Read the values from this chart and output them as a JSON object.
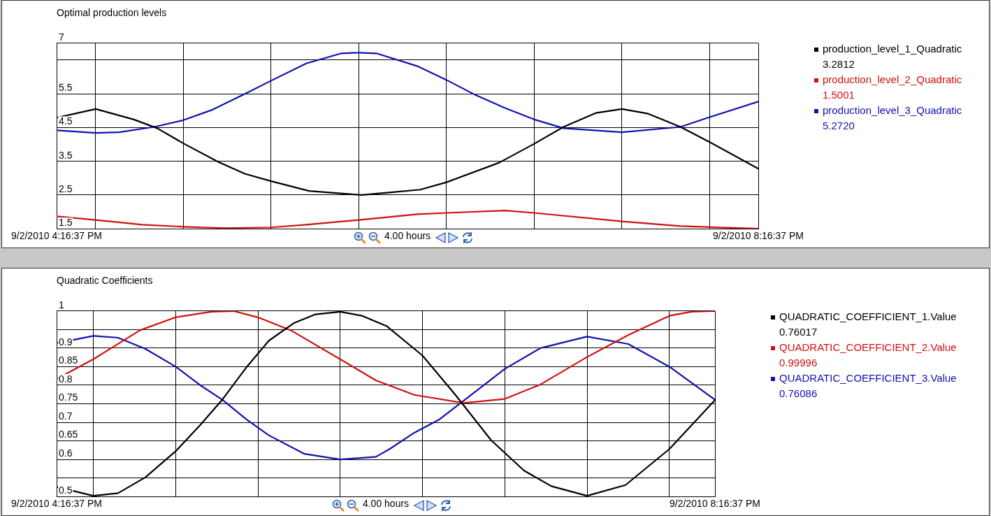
{
  "chart_data": [
    {
      "type": "line",
      "title": "Optimal production levels",
      "xlim": [
        "2010-09-02T16:16:37",
        "2010-09-02T20:16:37"
      ],
      "ylim": [
        1.5,
        7
      ],
      "xticks": [
        {
          "value": "2010-09-02T16:16:37",
          "label": "9/2/2010 4:16:37 PM"
        },
        {
          "value": "2010-09-02T16:30",
          "label": null
        },
        {
          "value": "2010-09-02T17:00",
          "label": null
        },
        {
          "value": "2010-09-02T17:30",
          "label": null
        },
        {
          "value": "2010-09-02T18:00",
          "label": null
        },
        {
          "value": "2010-09-02T18:16:37",
          "label": "4.00 hours"
        },
        {
          "value": "2010-09-02T18:30",
          "label": null
        },
        {
          "value": "2010-09-02T19:00",
          "label": null
        },
        {
          "value": "2010-09-02T19:30",
          "label": null
        },
        {
          "value": "2010-09-02T20:00",
          "label": null
        },
        {
          "value": "2010-09-02T20:16:37",
          "label": "9/2/2010 8:16:37 PM"
        }
      ],
      "yticks": [
        1.5,
        2.5,
        3.5,
        4.5,
        5.5,
        {
          "value": 6.5,
          "label": null
        },
        7
      ],
      "grid": true,
      "legend": "right",
      "series": [
        {
          "name": "production_level_1_Quadratic",
          "color": "#000000",
          "x": [
            "2010-09-02T16:16:37",
            "2010-09-02T16:30",
            "2010-09-02T16:43",
            "2010-09-02T16:51",
            "2010-09-02T17:00",
            "2010-09-02T17:12",
            "2010-09-02T17:21",
            "2010-09-02T17:30",
            "2010-09-02T17:43",
            "2010-09-02T18:01",
            "2010-09-02T18:11",
            "2010-09-02T18:21",
            "2010-09-02T18:30",
            "2010-09-02T18:48",
            "2010-09-02T19:00",
            "2010-09-02T19:10",
            "2010-09-02T19:21",
            "2010-09-02T19:30",
            "2010-09-02T19:39",
            "2010-09-02T19:50",
            "2010-09-02T20:00",
            "2010-09-02T20:16:37"
          ],
          "values": [
            4.79,
            5.05,
            4.74,
            4.48,
            4.03,
            3.48,
            3.13,
            2.91,
            2.62,
            2.5,
            2.58,
            2.66,
            2.88,
            3.46,
            4.02,
            4.52,
            4.93,
            5.05,
            4.91,
            4.52,
            4.07,
            3.28
          ]
        },
        {
          "name": "production_level_2_Quadratic",
          "color": "#d01010",
          "x": [
            "2010-09-02T16:16:37",
            "2010-09-02T16:30",
            "2010-09-02T16:46",
            "2010-09-02T17:00",
            "2010-09-02T17:14",
            "2010-09-02T17:30",
            "2010-09-02T17:42",
            "2010-09-02T18:00",
            "2010-09-02T18:20",
            "2010-09-02T18:30",
            "2010-09-02T18:50",
            "2010-09-02T19:00",
            "2010-09-02T19:30",
            "2010-09-02T19:50",
            "2010-09-02T20:16:37"
          ],
          "values": [
            1.87,
            1.76,
            1.62,
            1.56,
            1.52,
            1.54,
            1.62,
            1.76,
            1.93,
            1.97,
            2.04,
            1.97,
            1.72,
            1.58,
            1.5
          ]
        },
        {
          "name": "production_level_3_Quadratic",
          "color": "#1010b0",
          "x": [
            "2010-09-02T16:16:37",
            "2010-09-02T16:30",
            "2010-09-02T16:38",
            "2010-09-02T16:50",
            "2010-09-02T17:00",
            "2010-09-02T17:10",
            "2010-09-02T17:22",
            "2010-09-02T17:30",
            "2010-09-02T17:42",
            "2010-09-02T17:54",
            "2010-09-02T18:00",
            "2010-09-02T18:06",
            "2010-09-02T18:20",
            "2010-09-02T18:30",
            "2010-09-02T18:40",
            "2010-09-02T18:50",
            "2010-09-02T19:00",
            "2010-09-02T19:10",
            "2010-09-02T19:30",
            "2010-09-02T19:50",
            "2010-09-02T20:00",
            "2010-09-02T20:16:37"
          ],
          "values": [
            4.42,
            4.34,
            4.36,
            4.52,
            4.72,
            5.03,
            5.54,
            5.89,
            6.4,
            6.7,
            6.72,
            6.7,
            6.32,
            5.91,
            5.46,
            5.08,
            4.74,
            4.48,
            4.36,
            4.52,
            4.81,
            5.27
          ]
        }
      ],
      "annotations": [
        "3.2812",
        "1.5001",
        "5.2720"
      ]
    },
    {
      "type": "line",
      "title": "Quadratic Coefficients",
      "xlim": [
        "2010-09-02T16:16:37",
        "2010-09-02T20:16:37"
      ],
      "ylim": [
        0.5,
        1
      ],
      "xticks": [
        {
          "value": "2010-09-02T16:16:37",
          "label": "9/2/2010 4:16:37 PM"
        },
        {
          "value": "2010-09-02T16:30",
          "label": null
        },
        {
          "value": "2010-09-02T17:00",
          "label": null
        },
        {
          "value": "2010-09-02T17:30",
          "label": null
        },
        {
          "value": "2010-09-02T18:00",
          "label": null
        },
        {
          "value": "2010-09-02T18:16:37",
          "label": "4.00 hours"
        },
        {
          "value": "2010-09-02T18:30",
          "label": null
        },
        {
          "value": "2010-09-02T19:00",
          "label": null
        },
        {
          "value": "2010-09-02T19:30",
          "label": null
        },
        {
          "value": "2010-09-02T20:00",
          "label": null
        },
        {
          "value": "2010-09-02T20:16:37",
          "label": "9/2/2010 8:16:37 PM"
        }
      ],
      "yticks": [
        0.5,
        {
          "value": 0.55,
          "label": null
        },
        0.6,
        0.65,
        0.7,
        0.75,
        0.8,
        0.85,
        0.9,
        {
          "value": 0.95,
          "label": null
        },
        1
      ],
      "grid": true,
      "legend": "right",
      "series": [
        {
          "name": "QUADRATIC_COEFFICIENT_1.Value",
          "color": "#000000",
          "x": [
            "2010-09-02T16:16:37",
            "2010-09-02T16:30",
            "2010-09-02T16:39",
            "2010-09-02T16:49",
            "2010-09-02T17:00",
            "2010-09-02T17:09",
            "2010-09-02T17:17",
            "2010-09-02T17:26",
            "2010-09-02T17:34",
            "2010-09-02T17:43",
            "2010-09-02T17:51",
            "2010-09-02T18:00",
            "2010-09-02T18:08",
            "2010-09-02T18:17",
            "2010-09-02T18:30",
            "2010-09-02T18:42",
            "2010-09-02T18:55",
            "2010-09-02T19:07",
            "2010-09-02T19:17",
            "2010-09-02T19:30",
            "2010-09-02T19:44",
            "2010-09-02T20:00",
            "2010-09-02T20:16:37"
          ],
          "values": [
            0.526,
            0.502,
            0.509,
            0.552,
            0.622,
            0.693,
            0.761,
            0.85,
            0.92,
            0.967,
            0.991,
            0.998,
            0.987,
            0.959,
            0.88,
            0.774,
            0.652,
            0.57,
            0.528,
            0.502,
            0.531,
            0.628,
            0.76
          ]
        },
        {
          "name": "QUADRATIC_COEFFICIENT_2.Value",
          "color": "#d01010",
          "x": [
            "2010-09-02T16:16:37",
            "2010-09-02T16:30",
            "2010-09-02T16:47",
            "2010-09-02T17:00",
            "2010-09-02T17:13",
            "2010-09-02T17:21",
            "2010-09-02T17:30",
            "2010-09-02T17:42",
            "2010-09-02T18:00",
            "2010-09-02T18:13",
            "2010-09-02T18:27",
            "2010-09-02T18:45",
            "2010-09-02T19:00",
            "2010-09-02T19:13",
            "2010-09-02T19:30",
            "2010-09-02T19:45",
            "2010-09-02T20:00",
            "2010-09-02T20:08",
            "2010-09-02T20:16:37"
          ],
          "values": [
            0.817,
            0.87,
            0.948,
            0.983,
            0.998,
            1.0,
            0.983,
            0.948,
            0.87,
            0.813,
            0.774,
            0.752,
            0.763,
            0.802,
            0.876,
            0.935,
            0.987,
            0.998,
            1.0
          ]
        },
        {
          "name": "QUADRATIC_COEFFICIENT_3.Value",
          "color": "#1010b0",
          "x": [
            "2010-09-02T16:16:37",
            "2010-09-02T16:30",
            "2010-09-02T16:39",
            "2010-09-02T16:49",
            "2010-09-02T17:00",
            "2010-09-02T17:09",
            "2010-09-02T17:17",
            "2010-09-02T17:26",
            "2010-09-02T17:34",
            "2010-09-02T17:47",
            "2010-09-02T18:00",
            "2010-09-02T18:13",
            "2010-09-02T18:18",
            "2010-09-02T18:27",
            "2010-09-02T18:36",
            "2010-09-02T19:00",
            "2010-09-02T19:13",
            "2010-09-02T19:30",
            "2010-09-02T19:45",
            "2010-09-02T20:00",
            "2010-09-02T20:16:37"
          ],
          "values": [
            0.913,
            0.933,
            0.928,
            0.898,
            0.85,
            0.8,
            0.761,
            0.707,
            0.665,
            0.615,
            0.6,
            0.607,
            0.628,
            0.672,
            0.707,
            0.844,
            0.9,
            0.931,
            0.911,
            0.85,
            0.761
          ]
        }
      ],
      "annotations": [
        "0.76017",
        "0.99996",
        "0.76086"
      ]
    }
  ]
}
